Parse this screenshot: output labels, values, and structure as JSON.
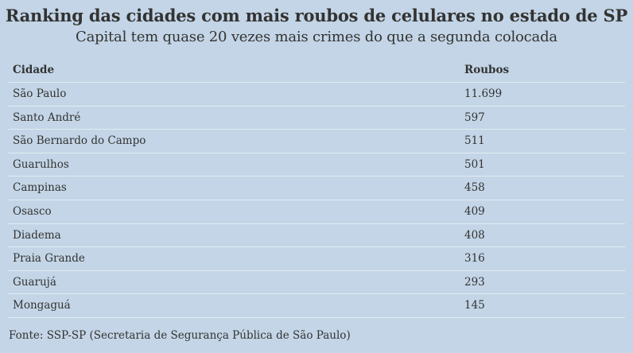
{
  "title": "Ranking das cidades com mais roubos de celulares no estado de SP",
  "subtitle": "Capital tem quase 20 vezes mais crimes do que a segunda colocada",
  "table": {
    "headers": [
      "Cidade",
      "Roubos"
    ],
    "rows": [
      [
        "São Paulo",
        "11.699"
      ],
      [
        "Santo André",
        "597"
      ],
      [
        "São Bernardo do Campo",
        "511"
      ],
      [
        "Guarulhos",
        "501"
      ],
      [
        "Campinas",
        "458"
      ],
      [
        "Osasco",
        "409"
      ],
      [
        "Diadema",
        "408"
      ],
      [
        "Praia Grande",
        "316"
      ],
      [
        "Guarujá",
        "293"
      ],
      [
        "Mongaguá",
        "145"
      ]
    ]
  },
  "source": "Fonte: SSP-SP (Secretaria de Segurança Pública de São Paulo)",
  "colors": {
    "background": "#c3d5e6",
    "text": "#333333",
    "row_divider": "#e4ecf4"
  }
}
